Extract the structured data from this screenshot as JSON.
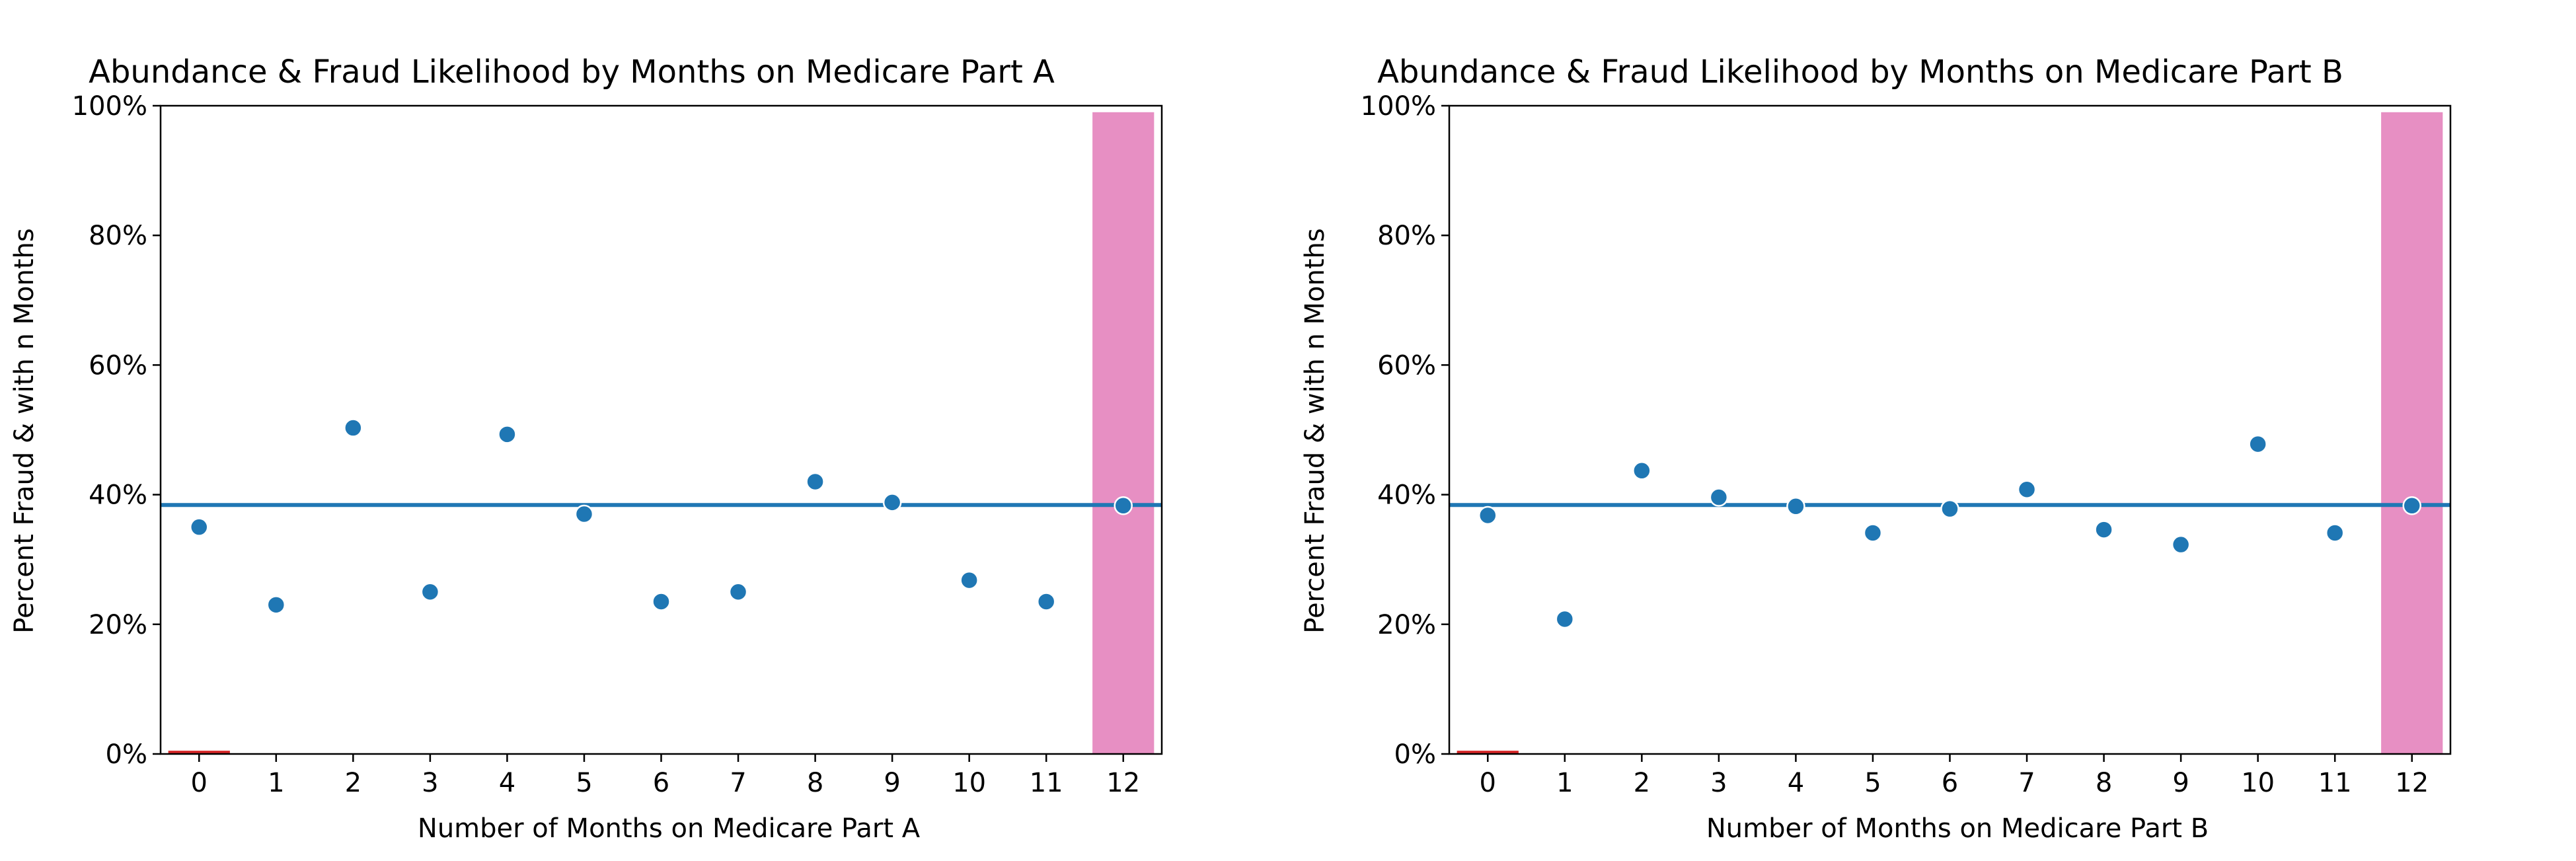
{
  "chart_data": [
    {
      "type": "scatter",
      "title": "Abundance & Fraud Likelihood by Months on Medicare Part A",
      "xlabel": "Number of Months on Medicare Part A",
      "ylabel": "Percent Fraud & with n Months",
      "categories": [
        "0",
        "1",
        "2",
        "3",
        "4",
        "5",
        "6",
        "7",
        "8",
        "9",
        "10",
        "11",
        "12"
      ],
      "ylim": [
        0,
        100
      ],
      "yticks": [
        "0%",
        "20%",
        "40%",
        "60%",
        "80%",
        "100%"
      ],
      "grid": false,
      "series": [
        {
          "kind": "bar",
          "values": [
            0.5,
            0,
            0,
            0,
            0,
            0,
            0,
            0,
            0,
            0,
            0,
            0,
            99
          ],
          "colors": [
            "#d62728",
            "#e78fc3",
            "#e78fc3",
            "#e78fc3",
            "#e78fc3",
            "#e78fc3",
            "#e78fc3",
            "#e78fc3",
            "#e78fc3",
            "#e78fc3",
            "#e78fc3",
            "#e78fc3",
            "#e78fc3"
          ]
        },
        {
          "kind": "scatter",
          "values": [
            35,
            23,
            50.3,
            25,
            49.3,
            37,
            23.5,
            25,
            42,
            38.8,
            26.8,
            23.5,
            38.3
          ],
          "color": "#1f77b4"
        },
        {
          "kind": "hline",
          "value": 38.4,
          "color": "#1f77b4"
        }
      ]
    },
    {
      "type": "scatter",
      "title": "Abundance & Fraud Likelihood by Months on Medicare Part B",
      "xlabel": "Number of Months on Medicare Part B",
      "ylabel": "Percent Fraud & with n Months",
      "categories": [
        "0",
        "1",
        "2",
        "3",
        "4",
        "5",
        "6",
        "7",
        "8",
        "9",
        "10",
        "11",
        "12"
      ],
      "ylim": [
        0,
        100
      ],
      "yticks": [
        "0%",
        "20%",
        "40%",
        "60%",
        "80%",
        "100%"
      ],
      "grid": false,
      "series": [
        {
          "kind": "bar",
          "values": [
            0.5,
            0,
            0,
            0,
            0,
            0,
            0,
            0,
            0,
            0,
            0,
            0,
            99
          ],
          "colors": [
            "#d62728",
            "#e78fc3",
            "#e78fc3",
            "#e78fc3",
            "#e78fc3",
            "#e78fc3",
            "#e78fc3",
            "#e78fc3",
            "#e78fc3",
            "#e78fc3",
            "#e78fc3",
            "#e78fc3",
            "#e78fc3"
          ]
        },
        {
          "kind": "scatter",
          "values": [
            36.8,
            20.8,
            43.7,
            39.6,
            38.2,
            34.1,
            37.8,
            40.8,
            34.6,
            32.3,
            47.8,
            34.1,
            38.3
          ],
          "color": "#1f77b4"
        },
        {
          "kind": "hline",
          "value": 38.4,
          "color": "#1f77b4"
        }
      ]
    }
  ]
}
